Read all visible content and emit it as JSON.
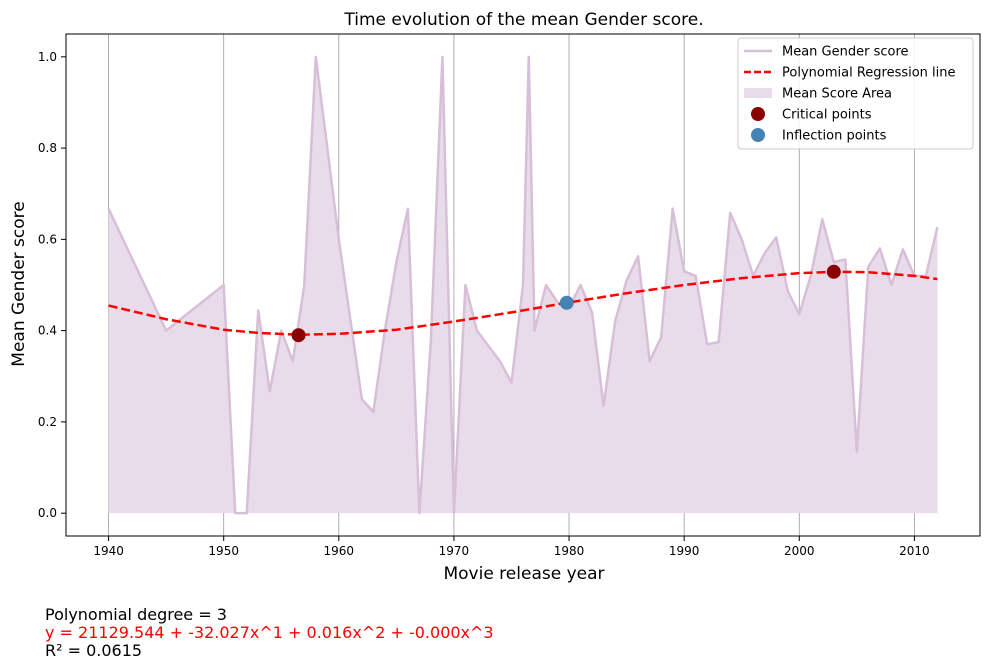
{
  "chart_data": {
    "type": "line",
    "title": "Time evolution of the mean Gender score.",
    "xlabel": "Movie release year",
    "ylabel": "Mean Gender score",
    "xlim": [
      1936.3,
      2015.7
    ],
    "ylim": [
      -0.05,
      1.05
    ],
    "x_ticks": [
      1940,
      1950,
      1960,
      1970,
      1980,
      1990,
      2000,
      2010
    ],
    "y_ticks": [
      0.0,
      0.2,
      0.4,
      0.6,
      0.8,
      1.0
    ],
    "vertical_grid": true,
    "legend_position": "top-right",
    "colors": {
      "mean_line": "#d8bfd8",
      "area_fill": "#e8dcea",
      "regression": "#ff0000",
      "critical": "#8b0000",
      "inflection": "#4682b4",
      "grid": "#999999"
    },
    "series": [
      {
        "name": "Mean Gender score",
        "kind": "line",
        "points": [
          [
            1940,
            0.667
          ],
          [
            1945,
            0.4
          ],
          [
            1950,
            0.5
          ],
          [
            1951,
            0.0
          ],
          [
            1952,
            0.0
          ],
          [
            1953,
            0.444
          ],
          [
            1954,
            0.267
          ],
          [
            1955,
            0.4
          ],
          [
            1956,
            0.333
          ],
          [
            1957,
            0.5
          ],
          [
            1958,
            1.0
          ],
          [
            1960,
            0.6
          ],
          [
            1962,
            0.25
          ],
          [
            1963,
            0.222
          ],
          [
            1964,
            0.4
          ],
          [
            1965,
            0.55
          ],
          [
            1966,
            0.667
          ],
          [
            1967,
            0.0
          ],
          [
            1968,
            0.38
          ],
          [
            1969,
            1.0
          ],
          [
            1970,
            0.0
          ],
          [
            1971,
            0.5
          ],
          [
            1972,
            0.4
          ],
          [
            1974,
            0.333
          ],
          [
            1975,
            0.286
          ],
          [
            1976,
            0.5
          ],
          [
            1976.5,
            1.0
          ],
          [
            1977,
            0.4
          ],
          [
            1978,
            0.5
          ],
          [
            1979,
            0.462
          ],
          [
            1980,
            0.45
          ],
          [
            1981,
            0.5
          ],
          [
            1982,
            0.44
          ],
          [
            1983,
            0.235
          ],
          [
            1984,
            0.42
          ],
          [
            1985,
            0.51
          ],
          [
            1986,
            0.563
          ],
          [
            1987,
            0.333
          ],
          [
            1988,
            0.385
          ],
          [
            1989,
            0.667
          ],
          [
            1990,
            0.53
          ],
          [
            1991,
            0.52
          ],
          [
            1992,
            0.37
          ],
          [
            1993,
            0.375
          ],
          [
            1994,
            0.658
          ],
          [
            1995,
            0.6
          ],
          [
            1996,
            0.52
          ],
          [
            1997,
            0.57
          ],
          [
            1998,
            0.604
          ],
          [
            1999,
            0.487
          ],
          [
            2000,
            0.436
          ],
          [
            2001,
            0.52
          ],
          [
            2002,
            0.644
          ],
          [
            2003,
            0.55
          ],
          [
            2004,
            0.556
          ],
          [
            2005,
            0.135
          ],
          [
            2006,
            0.54
          ],
          [
            2007,
            0.58
          ],
          [
            2008,
            0.5
          ],
          [
            2009,
            0.578
          ],
          [
            2010,
            0.52
          ],
          [
            2011,
            0.52
          ],
          [
            2012,
            0.627
          ]
        ]
      },
      {
        "name": "Polynomial Regression line",
        "kind": "dashed-line",
        "points": [
          [
            1940,
            0.455
          ],
          [
            1945,
            0.425
          ],
          [
            1950,
            0.402
          ],
          [
            1953,
            0.395
          ],
          [
            1956.5,
            0.391
          ],
          [
            1960,
            0.393
          ],
          [
            1965,
            0.402
          ],
          [
            1970,
            0.42
          ],
          [
            1975,
            0.44
          ],
          [
            1979.8,
            0.461
          ],
          [
            1985,
            0.482
          ],
          [
            1990,
            0.5
          ],
          [
            1995,
            0.515
          ],
          [
            2000,
            0.526
          ],
          [
            2003,
            0.529
          ],
          [
            2006,
            0.528
          ],
          [
            2010,
            0.52
          ],
          [
            2012,
            0.513
          ]
        ]
      },
      {
        "name": "Mean Score Area",
        "kind": "area"
      },
      {
        "name": "Critical points",
        "kind": "scatter",
        "points": [
          [
            1956.5,
            0.39
          ],
          [
            2003,
            0.529
          ]
        ]
      },
      {
        "name": "Inflection points",
        "kind": "scatter",
        "points": [
          [
            1979.8,
            0.461
          ]
        ]
      }
    ]
  },
  "footnotes": {
    "degree": "Polynomial degree = 3",
    "equation": "y = 21129.544 + -32.027x^1 + 0.016x^2 + -0.000x^3",
    "r2": "R² = 0.0615"
  }
}
